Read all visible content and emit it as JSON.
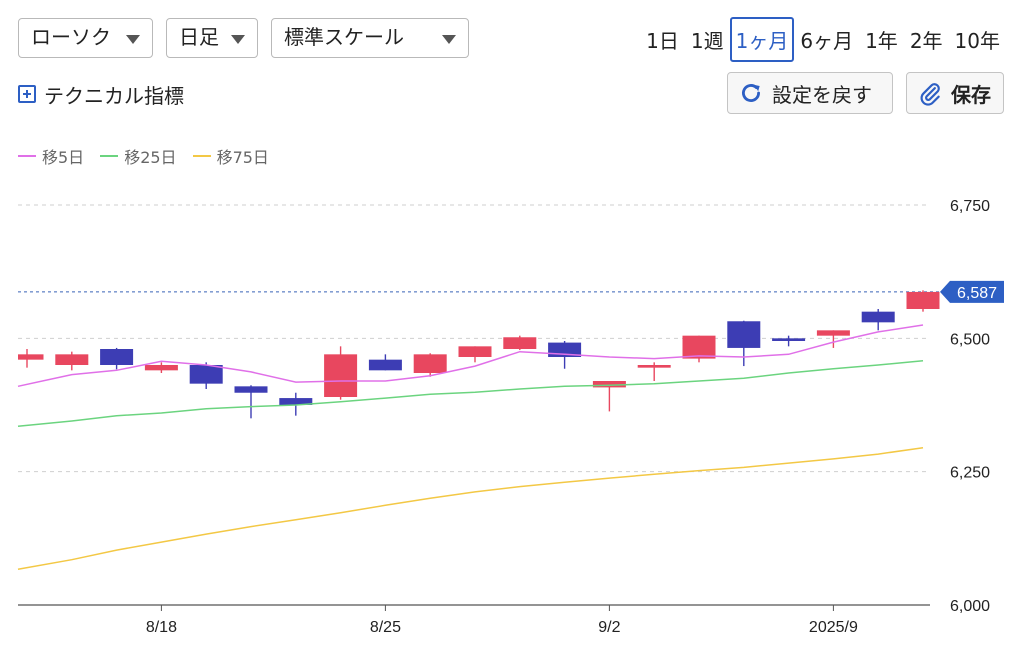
{
  "controls": {
    "chart_type": "ローソク",
    "interval": "日足",
    "scale": "標準スケール",
    "periods": [
      "1日",
      "1週",
      "1ヶ月",
      "6ヶ月",
      "1年",
      "2年",
      "10年"
    ],
    "active_period_index": 2,
    "technical_label": "テクニカル指標",
    "reset_label": "設定を戻す",
    "save_label": "保存"
  },
  "colors": {
    "up": "#e8475f",
    "down": "#3d3db4",
    "ma5": "#e070e8",
    "ma25": "#6bd47f",
    "ma75": "#f3c845",
    "accent": "#2d5fc4"
  },
  "chart_data": {
    "type": "candlestick",
    "y_ticks": [
      "6,750",
      "6,500",
      "6,250",
      "6,000"
    ],
    "y_tick_values": [
      6750,
      6500,
      6250,
      6000
    ],
    "ylim": [
      6000,
      6750
    ],
    "x_tick_labels": [
      "8/18",
      "8/25",
      "9/2",
      "2025/9"
    ],
    "x_tick_index": [
      3,
      8,
      13,
      18
    ],
    "last_price": 6587,
    "last_price_label": "6,587",
    "candles": [
      {
        "o": 6460,
        "h": 6480,
        "l": 6445,
        "c": 6470
      },
      {
        "o": 6450,
        "h": 6475,
        "l": 6440,
        "c": 6470
      },
      {
        "o": 6480,
        "h": 6482,
        "l": 6442,
        "c": 6450
      },
      {
        "o": 6440,
        "h": 6455,
        "l": 6435,
        "c": 6450
      },
      {
        "o": 6450,
        "h": 6455,
        "l": 6405,
        "c": 6415
      },
      {
        "o": 6410,
        "h": 6412,
        "l": 6350,
        "c": 6398
      },
      {
        "o": 6388,
        "h": 6398,
        "l": 6355,
        "c": 6375
      },
      {
        "o": 6390,
        "h": 6485,
        "l": 6385,
        "c": 6470
      },
      {
        "o": 6460,
        "h": 6470,
        "l": 6440,
        "c": 6440
      },
      {
        "o": 6435,
        "h": 6472,
        "l": 6428,
        "c": 6470
      },
      {
        "o": 6465,
        "h": 6485,
        "l": 6455,
        "c": 6485
      },
      {
        "o": 6480,
        "h": 6505,
        "l": 6478,
        "c": 6502
      },
      {
        "o": 6492,
        "h": 6495,
        "l": 6443,
        "c": 6465
      },
      {
        "o": 6408,
        "h": 6420,
        "l": 6363,
        "c": 6420
      },
      {
        "o": 6445,
        "h": 6455,
        "l": 6420,
        "c": 6450
      },
      {
        "o": 6462,
        "h": 6505,
        "l": 6455,
        "c": 6505
      },
      {
        "o": 6532,
        "h": 6533,
        "l": 6448,
        "c": 6482
      },
      {
        "o": 6500,
        "h": 6505,
        "l": 6485,
        "c": 6495
      },
      {
        "o": 6505,
        "h": 6515,
        "l": 6482,
        "c": 6515
      },
      {
        "o": 6550,
        "h": 6555,
        "l": 6515,
        "c": 6530
      },
      {
        "o": 6555,
        "h": 6590,
        "l": 6550,
        "c": 6587
      }
    ],
    "series": [
      {
        "name": "移5日",
        "values": [
          6410,
          6432,
          6440,
          6457,
          6450,
          6437,
          6418,
          6420,
          6420,
          6430,
          6448,
          6475,
          6470,
          6465,
          6462,
          6467,
          6465,
          6470,
          6493,
          6512,
          6525
        ]
      },
      {
        "name": "移25日",
        "values": [
          6335,
          6345,
          6355,
          6360,
          6368,
          6372,
          6375,
          6381,
          6388,
          6395,
          6399,
          6405,
          6410,
          6412,
          6415,
          6420,
          6425,
          6435,
          6443,
          6450,
          6458
        ]
      },
      {
        "name": "移75日",
        "values": [
          6067,
          6085,
          6103,
          6118,
          6133,
          6147,
          6160,
          6173,
          6187,
          6200,
          6212,
          6222,
          6230,
          6238,
          6245,
          6252,
          6258,
          6266,
          6274,
          6283,
          6295
        ]
      }
    ]
  }
}
